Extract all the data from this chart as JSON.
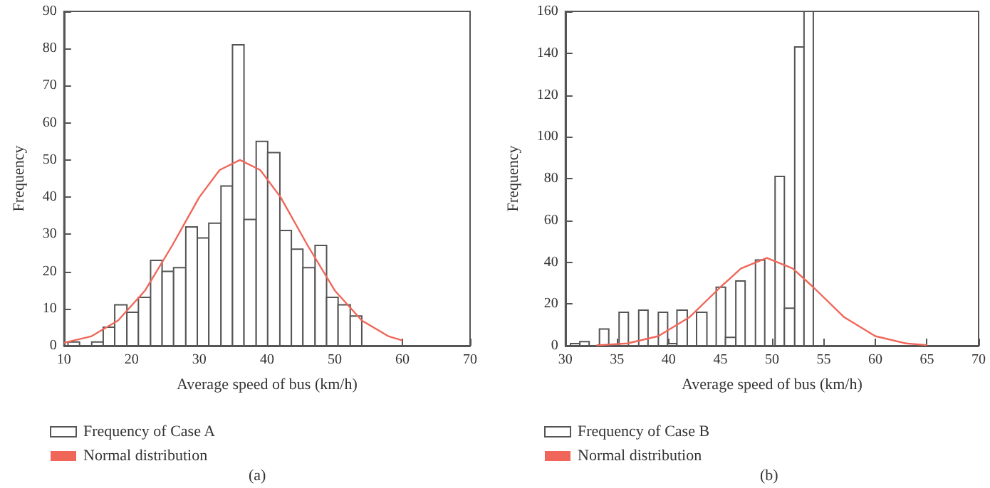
{
  "chart_data": [
    {
      "type": "histogram",
      "xlabel": "Average speed of bus (km/h)",
      "ylabel": "Frequency",
      "xlim": [
        10,
        70
      ],
      "xticks": [
        10,
        20,
        30,
        40,
        50,
        60,
        70
      ],
      "ylim": [
        0,
        90
      ],
      "yticks": [
        0,
        10,
        20,
        30,
        40,
        50,
        60,
        70,
        80,
        90
      ],
      "grid": false,
      "legend": "bottom left",
      "annotations": [
        "(a)"
      ],
      "bins": [
        10.6,
        12.3,
        14.1,
        15.8,
        17.5,
        19.3,
        21.0,
        22.8,
        24.5,
        26.2,
        28.0,
        29.7,
        31.4,
        33.2,
        34.9,
        36.6,
        38.4,
        40.1,
        41.9,
        43.6,
        45.3,
        47.1,
        48.8,
        50.5,
        52.3,
        54.0
      ],
      "series": [
        {
          "name": "Frequency of Case A",
          "color": "#ffffff",
          "values": [
            1,
            0,
            1,
            5,
            11,
            9,
            13,
            23,
            20,
            21,
            32,
            29,
            33,
            43,
            81,
            34,
            55,
            52,
            31,
            26,
            21,
            27,
            13,
            11,
            8
          ]
        },
        {
          "name": "Normal distribution",
          "type": "line",
          "color": "#f0675a",
          "x": [
            10,
            14,
            18,
            22,
            26,
            30,
            33,
            36,
            39,
            42,
            46,
            50,
            54,
            58,
            60
          ],
          "values": [
            0.8,
            2.5,
            6.8,
            14.9,
            27,
            40,
            47.3,
            50,
            47.3,
            40,
            27,
            14.9,
            6.8,
            2.5,
            1.4
          ]
        }
      ]
    },
    {
      "type": "histogram",
      "xlabel": "Average speed of bus (km/h)",
      "ylabel": "Frequency",
      "xlim": [
        30,
        70
      ],
      "xticks": [
        30,
        35,
        40,
        45,
        50,
        55,
        60,
        65,
        70
      ],
      "ylim": [
        0,
        160
      ],
      "yticks": [
        0,
        20,
        40,
        60,
        80,
        100,
        120,
        140,
        160
      ],
      "grid": false,
      "legend": "bottom left",
      "annotations": [
        "(b)"
      ],
      "bins": [
        30.5,
        31.4,
        32.3,
        33.3,
        34.2,
        35.2,
        36.1,
        37.1,
        38.0,
        39.0,
        39.9,
        40.8,
        41.8,
        42.7,
        43.7,
        44.6,
        45.5,
        46.5,
        47.4,
        48.4,
        49.3,
        50.3,
        51.2,
        52.2,
        53.1,
        54.0
      ],
      "series": [
        {
          "name": "Frequency of Case B",
          "color": "#ffffff",
          "values": [
            1,
            2,
            0,
            8,
            null,
            16,
            0,
            17,
            0,
            16,
            1,
            17,
            0,
            16,
            0,
            28,
            4,
            31,
            0,
            41,
            0,
            81,
            18,
            143,
            160
          ]
        },
        {
          "name": "Normal distribution",
          "type": "line",
          "color": "#f0675a",
          "x": [
            33,
            36,
            39,
            42,
            45,
            47,
            49.5,
            52,
            54,
            57,
            60,
            63,
            65
          ],
          "values": [
            0.2,
            1.1,
            4.6,
            13.6,
            28,
            37,
            42,
            37,
            28,
            13.6,
            4.6,
            1.1,
            0.3
          ]
        }
      ]
    }
  ]
}
